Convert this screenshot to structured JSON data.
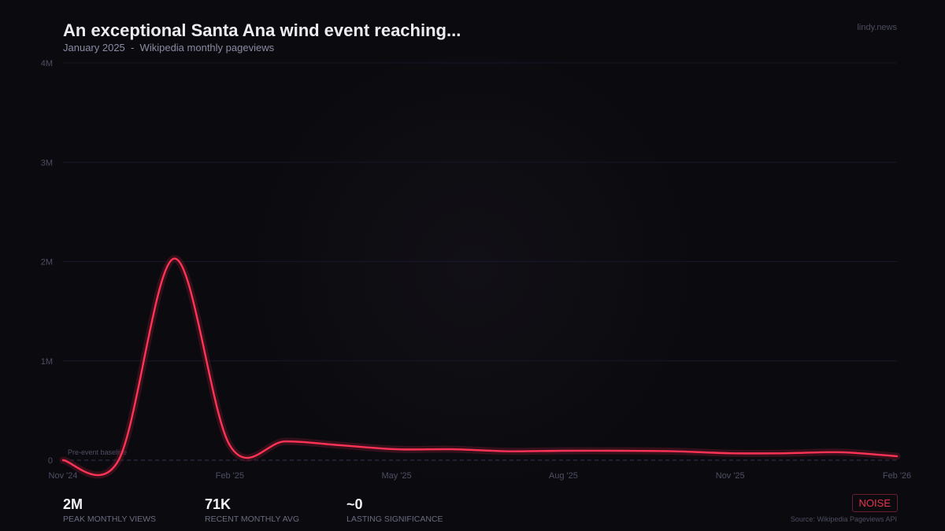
{
  "header": {
    "title": "An exceptional Santa Ana wind event reaching...",
    "subtitle": "January 2025  -  Wikipedia monthly pageviews",
    "brand": "lindy.news"
  },
  "chart_data": {
    "type": "line",
    "x": [
      "Nov '24",
      "Dec '24",
      "Jan '25",
      "Feb '25",
      "Mar '25",
      "Apr '25",
      "May '25",
      "Jun '25",
      "Jul '25",
      "Aug '25",
      "Sep '25",
      "Oct '25",
      "Nov '25",
      "Dec '25",
      "Jan '26",
      "Feb '26"
    ],
    "values": [
      0,
      0,
      2030000,
      150000,
      190000,
      150000,
      110000,
      110000,
      90000,
      95000,
      95000,
      90000,
      70000,
      70000,
      80000,
      40000
    ],
    "xticks": [
      "Nov '24",
      "Feb '25",
      "May '25",
      "Aug '25",
      "Nov '25",
      "Feb '26"
    ],
    "yticks": [
      "0",
      "1M",
      "2M",
      "3M",
      "4M"
    ],
    "ylim": [
      0,
      4000000
    ],
    "grid": true,
    "baseline_label": "Pre-event baseline",
    "line_color": "#ff3355"
  },
  "stats": [
    {
      "value": "2M",
      "label": "PEAK MONTHLY VIEWS"
    },
    {
      "value": "71K",
      "label": "RECENT MONTHLY AVG"
    },
    {
      "value": "~0",
      "label": "LASTING SIGNIFICANCE"
    }
  ],
  "badge": "NOISE",
  "source": "Source: Wikipedia Pageviews API"
}
